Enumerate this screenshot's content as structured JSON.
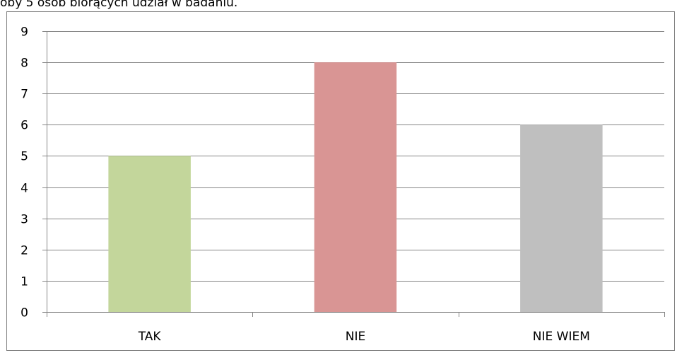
{
  "caption": "oby 5 osób biorących udział w badaniu.",
  "chart_data": {
    "type": "bar",
    "categories": [
      "TAK",
      "NIE",
      "NIE WIEM"
    ],
    "values": [
      5,
      8,
      6
    ],
    "colors": [
      "#c3d69b",
      "#d99594",
      "#bfbfbf"
    ],
    "ylim": [
      0,
      9
    ],
    "yticks": [
      0,
      1,
      2,
      3,
      4,
      5,
      6,
      7,
      8,
      9
    ],
    "grid": true,
    "legend": false
  }
}
